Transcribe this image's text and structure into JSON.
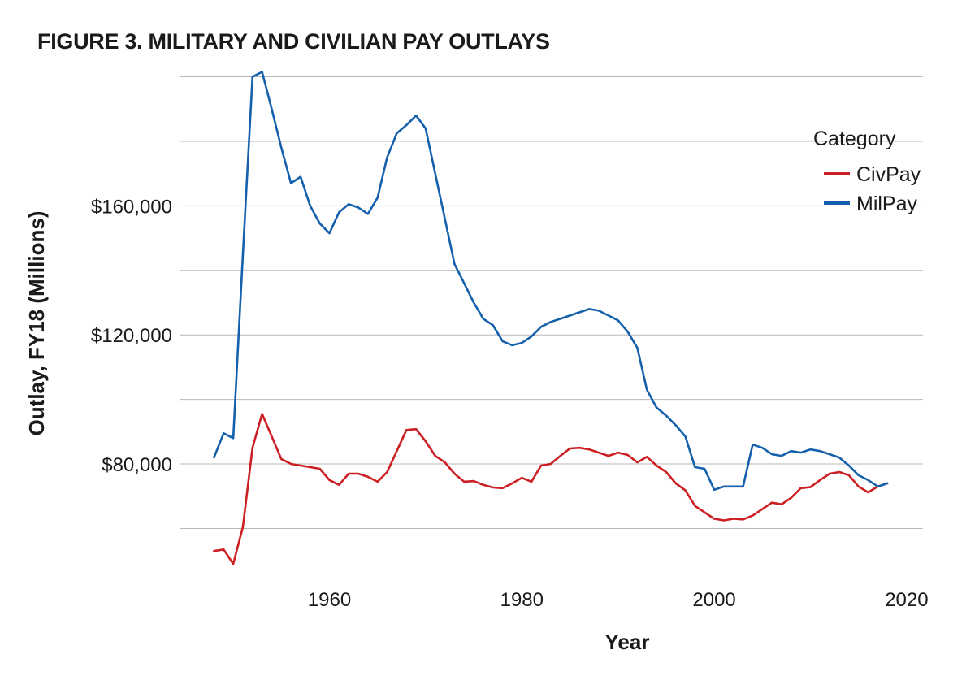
{
  "colors": {
    "CivPay": "#cc1f24",
    "MilPay": "#1560ad",
    "grid": "#b8b8b8"
  },
  "chart_data": {
    "type": "line",
    "title": "FIGURE 3. MILITARY AND CIVILIAN PAY OUTLAYS",
    "xlabel": "Year",
    "ylabel": "Outlay, FY18 (Millions)",
    "x_ticks": [
      1960,
      1980,
      2000,
      2020
    ],
    "y_ticks": [
      80000,
      120000,
      160000
    ],
    "y_tick_labels": [
      "$80,000",
      "$120,000",
      "$160,000"
    ],
    "xlim": [
      1944.5,
      2021.7
    ],
    "ylim": [
      44500,
      208700
    ],
    "grid": true,
    "legend": {
      "title": "Category",
      "position": "top-right",
      "entries": [
        "CivPay",
        "MilPay"
      ]
    },
    "series": [
      {
        "name": "CivPay",
        "x": [
          1948,
          1949,
          1950,
          1951,
          1952,
          1953,
          1954,
          1955,
          1956,
          1957,
          1958,
          1959,
          1960,
          1961,
          1962,
          1963,
          1964,
          1965,
          1966,
          1967,
          1968,
          1969,
          1970,
          1971,
          1972,
          1973,
          1974,
          1975,
          1976,
          1977,
          1978,
          1979,
          1980,
          1981,
          1982,
          1983,
          1984,
          1985,
          1986,
          1987,
          1988,
          1989,
          1990,
          1991,
          1992,
          1993,
          1994,
          1995,
          1996,
          1997,
          1998,
          1999,
          2000,
          2001,
          2002,
          2003,
          2004,
          2005,
          2006,
          2007,
          2008,
          2009,
          2010,
          2011,
          2012,
          2013,
          2014,
          2015,
          2016,
          2017,
          2018
        ],
        "y": [
          53000,
          53500,
          49000,
          60500,
          85000,
          95500,
          88500,
          81500,
          80000,
          79500,
          79000,
          78500,
          75000,
          73500,
          77000,
          77000,
          76000,
          74500,
          77500,
          84000,
          90500,
          90800,
          87000,
          82500,
          80500,
          77000,
          74500,
          74700,
          73500,
          72700,
          72500,
          74000,
          75700,
          74500,
          79500,
          80000,
          82500,
          84800,
          85000,
          84500,
          83500,
          82500,
          83500,
          82800,
          80500,
          82200,
          79500,
          77500,
          74000,
          71800,
          67000,
          65000,
          63000,
          62500,
          63000,
          62800,
          64000,
          66000,
          68000,
          67500,
          69500,
          72500,
          72800,
          75000,
          77000,
          77500,
          76500,
          73000,
          71200,
          73000,
          74000
        ]
      },
      {
        "name": "MilPay",
        "x": [
          1948,
          1949,
          1950,
          1951,
          1952,
          1953,
          1954,
          1955,
          1956,
          1957,
          1958,
          1959,
          1960,
          1961,
          1962,
          1963,
          1964,
          1965,
          1966,
          1967,
          1968,
          1969,
          1970,
          1971,
          1972,
          1973,
          1974,
          1975,
          1976,
          1977,
          1978,
          1979,
          1980,
          1981,
          1982,
          1983,
          1984,
          1985,
          1986,
          1987,
          1988,
          1989,
          1990,
          1991,
          1992,
          1993,
          1994,
          1995,
          1996,
          1997,
          1998,
          1999,
          2000,
          2001,
          2002,
          2003,
          2004,
          2005,
          2006,
          2007,
          2008,
          2009,
          2010,
          2011,
          2012,
          2013,
          2014,
          2015,
          2016,
          2017,
          2018
        ],
        "y": [
          82000,
          89500,
          88000,
          145000,
          200000,
          201500,
          190000,
          178000,
          167000,
          169000,
          160000,
          154500,
          151500,
          158000,
          160500,
          159500,
          157500,
          162500,
          175000,
          182500,
          185000,
          188000,
          184000,
          170000,
          156000,
          142000,
          136000,
          130000,
          125000,
          123000,
          118000,
          116800,
          117500,
          119500,
          122500,
          124000,
          125000,
          126000,
          127000,
          128000,
          127500,
          126000,
          124500,
          121000,
          116000,
          103000,
          97500,
          95000,
          92000,
          88500,
          79000,
          78500,
          72000,
          73000,
          73000,
          73000,
          86000,
          85000,
          83000,
          82500,
          84000,
          83500,
          84500,
          84000,
          83000,
          82000,
          79500,
          76500,
          75000,
          73000,
          74000
        ]
      }
    ]
  }
}
